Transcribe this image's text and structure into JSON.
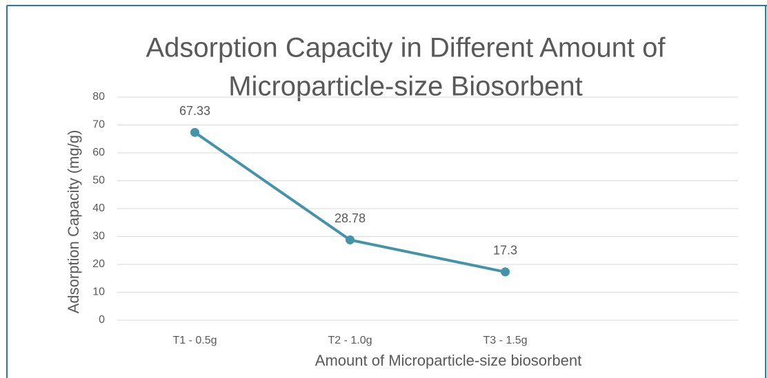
{
  "chart_data": {
    "type": "line",
    "title": [
      "Adsorption Capacity in Different Amount of",
      "Microparticle-size Biosorbent"
    ],
    "x_label": "Amount of Microparticle-size biosorbent",
    "y_label": "Adsorption Capacity (mg/g)",
    "categories": [
      "T1 - 0.5g",
      "T2 - 1.0g",
      "T3 - 1.5g",
      null
    ],
    "series": [
      {
        "name": "Adsorption Capacity",
        "color": "#4593a8",
        "values": [
          67.33,
          28.78,
          17.3,
          null
        ]
      }
    ],
    "ylim": [
      0,
      80
    ],
    "yticks": [
      0,
      10,
      20,
      30,
      40,
      50,
      60,
      70,
      80
    ],
    "grid": true,
    "data_labels": true,
    "legend": false
  }
}
